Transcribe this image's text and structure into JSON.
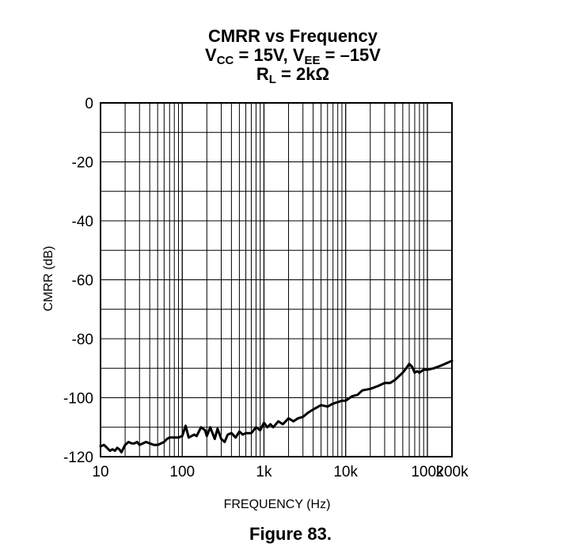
{
  "chart_data": {
    "type": "line",
    "title": {
      "line1": "CMRR vs Frequency",
      "line2": {
        "v1": "V",
        "v1_sub": "CC",
        "v1_val": " = 15V, ",
        "v2": "V",
        "v2_sub": "EE",
        "v2_val": " = –15V"
      },
      "line3": {
        "r": "R",
        "r_sub": "L",
        "r_val": " = 2kΩ"
      }
    },
    "xlabel": "FREQUENCY (Hz)",
    "ylabel": "CMRR (dB)",
    "x_scale": "log",
    "xlim": [
      10,
      200000
    ],
    "ylim": [
      -120,
      0
    ],
    "x_ticks": [
      {
        "value": 10,
        "label": "10"
      },
      {
        "value": 100,
        "label": "100"
      },
      {
        "value": 1000,
        "label": "1k"
      },
      {
        "value": 10000,
        "label": "10k"
      },
      {
        "value": 100000,
        "label": "100k"
      },
      {
        "value": 200000,
        "label": "200k"
      }
    ],
    "y_ticks": [
      {
        "value": 0,
        "label": "0"
      },
      {
        "value": -20,
        "label": "-20"
      },
      {
        "value": -40,
        "label": "-40"
      },
      {
        "value": -60,
        "label": "-60"
      },
      {
        "value": -80,
        "label": "-80"
      },
      {
        "value": -100,
        "label": "-100"
      },
      {
        "value": -120,
        "label": "-120"
      }
    ],
    "grid": true,
    "series": [
      {
        "color": "#000000",
        "x": [
          10,
          11,
          12,
          13,
          14,
          15,
          16,
          17,
          18,
          20,
          22,
          24,
          26,
          28,
          30,
          33,
          36,
          40,
          45,
          50,
          55,
          60,
          65,
          70,
          75,
          80,
          90,
          100,
          110,
          120,
          130,
          140,
          150,
          170,
          190,
          200,
          220,
          250,
          270,
          300,
          330,
          360,
          400,
          450,
          500,
          550,
          600,
          700,
          800,
          900,
          1000,
          1100,
          1200,
          1300,
          1500,
          1700,
          2000,
          2300,
          2600,
          3000,
          3500,
          4000,
          5000,
          6000,
          7000,
          8000,
          9000,
          10000,
          12000,
          14000,
          16000,
          20000,
          25000,
          30000,
          35000,
          40000,
          50000,
          55000,
          60000,
          65000,
          70000,
          75000,
          80000,
          90000,
          100000,
          120000,
          150000,
          200000
        ],
        "y": [
          -116.5,
          -116,
          -117,
          -118,
          -117.5,
          -118,
          -117,
          -117.5,
          -118.5,
          -116,
          -115,
          -115.5,
          -115.5,
          -115,
          -116,
          -115.5,
          -115,
          -115.5,
          -116,
          -116,
          -115.5,
          -115,
          -114,
          -113.5,
          -113.5,
          -113.5,
          -113.5,
          -113,
          -109.5,
          -113.5,
          -113,
          -112.5,
          -113,
          -110,
          -111,
          -113,
          -110,
          -114,
          -110.5,
          -114,
          -115,
          -112.5,
          -112,
          -113.5,
          -111.5,
          -112.5,
          -112,
          -112,
          -110,
          -111,
          -108.5,
          -110,
          -109,
          -110,
          -108,
          -109,
          -107,
          -108,
          -107,
          -106.5,
          -105,
          -104,
          -102.5,
          -103,
          -102,
          -101.5,
          -101,
          -101,
          -99.5,
          -99,
          -97.5,
          -97,
          -96,
          -95,
          -95,
          -94,
          -91.5,
          -90,
          -88.5,
          -89.5,
          -91.5,
          -91,
          -91.5,
          -90.5,
          -90.5,
          -90,
          -89,
          -87.5
        ]
      }
    ]
  },
  "figure_caption": "Figure 83."
}
